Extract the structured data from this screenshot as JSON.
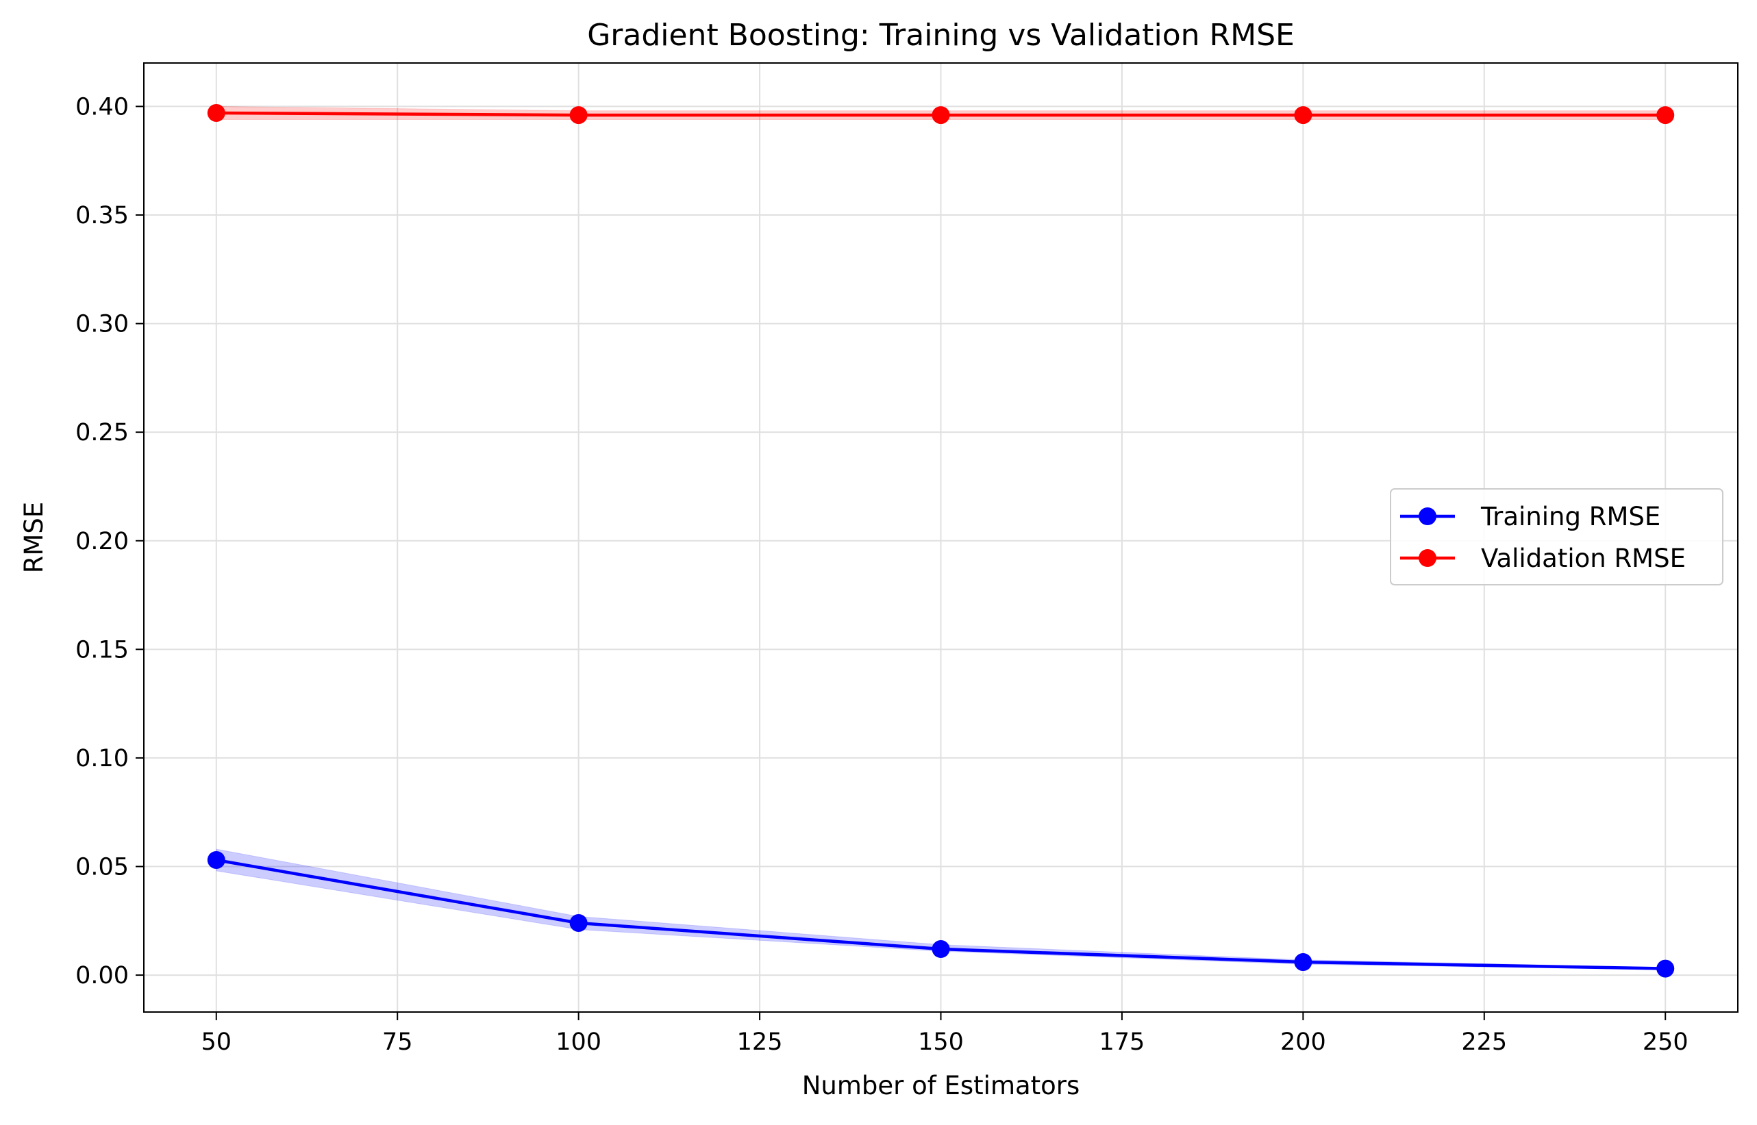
{
  "chart_data": {
    "type": "line",
    "title": "Gradient Boosting: Training vs Validation RMSE",
    "xlabel": "Number of Estimators",
    "ylabel": "RMSE",
    "xlim": [
      40,
      260
    ],
    "ylim": [
      -0.017,
      0.42
    ],
    "x_ticks": [
      50,
      75,
      100,
      125,
      150,
      175,
      200,
      225,
      250
    ],
    "y_ticks": [
      0.0,
      0.05,
      0.1,
      0.15,
      0.2,
      0.25,
      0.3,
      0.35,
      0.4
    ],
    "x_tick_labels": [
      "50",
      "75",
      "100",
      "125",
      "150",
      "175",
      "200",
      "225",
      "250"
    ],
    "y_tick_labels": [
      "0.00",
      "0.05",
      "0.10",
      "0.15",
      "0.20",
      "0.25",
      "0.30",
      "0.35",
      "0.40"
    ],
    "grid": true,
    "legend_position": "center-right",
    "x": [
      50,
      100,
      150,
      200,
      250
    ],
    "series": [
      {
        "name": "Training RMSE",
        "color": "#0000ff",
        "values": [
          0.053,
          0.024,
          0.012,
          0.006,
          0.003
        ],
        "band_lower": [
          0.048,
          0.021,
          0.011,
          0.005,
          0.0025
        ],
        "band_upper": [
          0.058,
          0.027,
          0.014,
          0.007,
          0.0035
        ]
      },
      {
        "name": "Validation RMSE",
        "color": "#ff0000",
        "values": [
          0.397,
          0.396,
          0.396,
          0.396,
          0.396
        ],
        "band_lower": [
          0.394,
          0.394,
          0.394,
          0.394,
          0.394
        ],
        "band_upper": [
          0.4,
          0.398,
          0.398,
          0.398,
          0.398
        ]
      }
    ]
  }
}
